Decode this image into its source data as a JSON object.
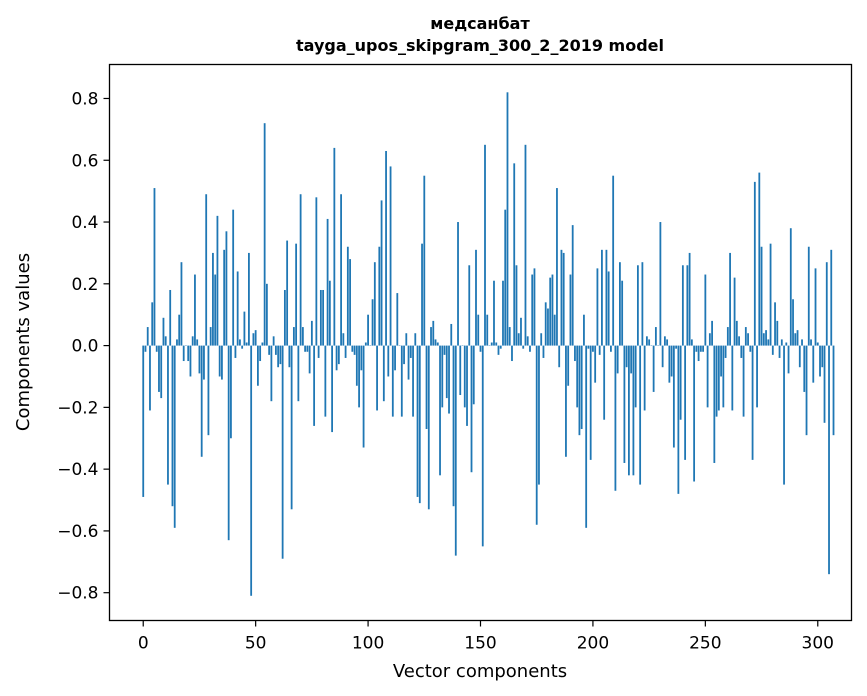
{
  "chart_data": {
    "type": "bar",
    "title": "медсанбат",
    "subtitle": "tayga_upos_skipgram_300_2_2019 model",
    "xlabel": "Vector components",
    "ylabel": "Components values",
    "xlim": [
      -15,
      315
    ],
    "ylim": [
      -0.89,
      0.91
    ],
    "xticks": [
      0,
      50,
      100,
      150,
      200,
      250,
      300
    ],
    "yticks": [
      -0.8,
      -0.6,
      -0.4,
      -0.2,
      0.0,
      0.2,
      0.4,
      0.6,
      0.8
    ],
    "ytick_labels": [
      "−0.8",
      "−0.6",
      "−0.4",
      "−0.2",
      "0.0",
      "0.2",
      "0.4",
      "0.6",
      "0.8"
    ],
    "bar_color": "#1f77b4",
    "grid": false,
    "values": [
      -0.49,
      -0.02,
      0.06,
      -0.21,
      0.14,
      0.51,
      -0.02,
      -0.15,
      -0.17,
      0.09,
      0.03,
      -0.45,
      0.18,
      -0.52,
      -0.59,
      0.02,
      0.1,
      0.27,
      -0.05,
      0.0,
      -0.05,
      -0.1,
      0.03,
      0.23,
      0.02,
      -0.09,
      -0.36,
      -0.11,
      0.49,
      -0.29,
      0.06,
      0.3,
      0.23,
      0.42,
      -0.1,
      -0.11,
      0.31,
      0.37,
      -0.63,
      -0.3,
      0.44,
      -0.04,
      0.24,
      0.02,
      -0.01,
      0.11,
      0.01,
      0.3,
      -0.81,
      0.04,
      0.05,
      -0.13,
      -0.05,
      0.01,
      0.72,
      0.2,
      -0.03,
      -0.18,
      0.03,
      -0.03,
      -0.07,
      -0.06,
      -0.69,
      0.18,
      0.34,
      -0.07,
      -0.53,
      0.06,
      0.33,
      -0.18,
      0.49,
      0.06,
      -0.02,
      -0.02,
      -0.09,
      0.08,
      -0.26,
      0.48,
      -0.04,
      0.18,
      0.18,
      -0.23,
      0.41,
      0.21,
      -0.28,
      0.64,
      -0.08,
      -0.06,
      0.49,
      0.04,
      -0.04,
      0.32,
      0.28,
      -0.02,
      -0.03,
      -0.13,
      -0.2,
      -0.08,
      -0.33,
      0.01,
      0.1,
      0.0,
      0.15,
      0.27,
      -0.21,
      0.32,
      0.47,
      -0.18,
      0.63,
      -0.1,
      0.58,
      -0.23,
      -0.08,
      0.17,
      0.0,
      -0.23,
      -0.06,
      0.04,
      -0.11,
      -0.04,
      -0.23,
      0.04,
      -0.49,
      -0.51,
      0.33,
      0.55,
      -0.27,
      -0.53,
      0.06,
      0.08,
      0.02,
      0.01,
      -0.42,
      -0.2,
      -0.03,
      -0.17,
      -0.22,
      0.07,
      -0.52,
      -0.68,
      0.4,
      -0.16,
      0.0,
      -0.2,
      -0.26,
      0.26,
      -0.41,
      -0.19,
      0.31,
      0.1,
      -0.02,
      -0.65,
      0.65,
      0.1,
      0.0,
      0.01,
      0.21,
      0.01,
      -0.03,
      -0.01,
      0.21,
      0.44,
      0.82,
      0.06,
      -0.05,
      0.59,
      0.26,
      0.04,
      0.09,
      -0.01,
      0.65,
      0.03,
      -0.02,
      0.23,
      0.25,
      -0.58,
      -0.45,
      0.04,
      -0.04,
      0.14,
      0.12,
      0.22,
      0.23,
      0.1,
      0.51,
      -0.07,
      0.31,
      0.3,
      -0.36,
      -0.13,
      0.23,
      0.39,
      -0.05,
      -0.2,
      -0.29,
      -0.27,
      0.1,
      -0.59,
      -0.01,
      -0.37,
      -0.02,
      -0.12,
      0.25,
      -0.03,
      0.31,
      -0.24,
      0.31,
      0.24,
      -0.02,
      0.55,
      -0.47,
      -0.09,
      0.27,
      0.21,
      -0.38,
      -0.07,
      -0.42,
      -0.09,
      -0.42,
      -0.2,
      0.26,
      -0.45,
      0.27,
      -0.21,
      0.03,
      0.02,
      0.0,
      -0.15,
      0.06,
      0.0,
      0.4,
      -0.07,
      0.03,
      0.02,
      -0.12,
      -0.1,
      -0.33,
      -0.01,
      -0.48,
      -0.24,
      0.26,
      -0.37,
      0.26,
      0.3,
      0.02,
      -0.44,
      -0.02,
      -0.05,
      -0.02,
      -0.02,
      0.23,
      -0.2,
      0.04,
      0.08,
      -0.38,
      -0.23,
      -0.21,
      -0.1,
      -0.2,
      -0.04,
      0.06,
      0.3,
      -0.21,
      0.22,
      0.08,
      0.03,
      -0.04,
      -0.23,
      0.06,
      0.04,
      -0.02,
      -0.37,
      0.53,
      -0.2,
      0.56,
      0.32,
      0.04,
      0.05,
      0.02,
      0.33,
      -0.03,
      0.14,
      0.08,
      -0.04,
      0.02,
      -0.45,
      0.01,
      -0.09,
      0.38,
      0.15,
      0.04,
      0.05,
      -0.07,
      0.02,
      -0.15,
      -0.29,
      0.32,
      0.02,
      -0.12,
      0.25,
      0.01,
      -0.1,
      -0.07,
      -0.25,
      0.27,
      -0.74,
      0.31,
      -0.29
    ]
  }
}
